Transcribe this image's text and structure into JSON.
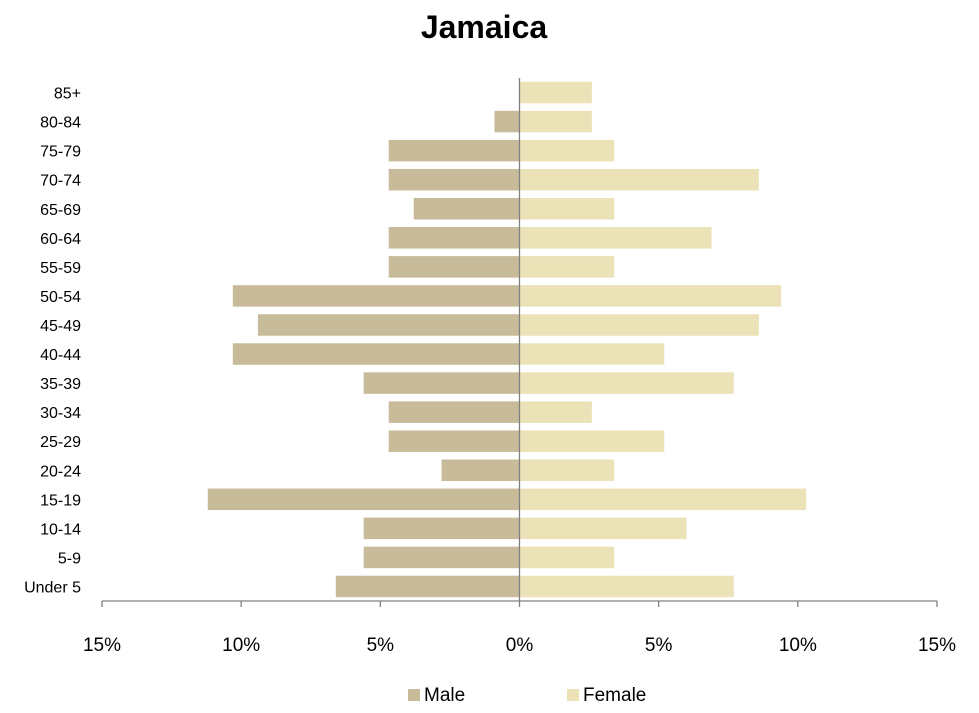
{
  "chart_data": {
    "type": "bar",
    "orientation": "horizontal",
    "title": "Jamaica",
    "xlabel": "",
    "ylabel": "",
    "categories": [
      "85+",
      "80-84",
      "75-79",
      "70-74",
      "65-69",
      "60-64",
      "55-59",
      "50-54",
      "45-49",
      "40-44",
      "35-39",
      "30-34",
      "25-29",
      "20-24",
      "15-19",
      "10-14",
      "5-9",
      "Under 5"
    ],
    "series": [
      {
        "name": "Male",
        "color": "#c8bb9a",
        "values": [
          0,
          -0.9,
          -4.7,
          -4.7,
          -3.8,
          -4.7,
          -4.7,
          -10.3,
          -9.4,
          -10.3,
          -5.6,
          -4.7,
          -4.7,
          -2.8,
          -11.2,
          -5.6,
          -5.6,
          -6.6
        ]
      },
      {
        "name": "Female",
        "color": "#ebe2b8",
        "values": [
          2.6,
          2.6,
          3.4,
          8.6,
          3.4,
          6.9,
          3.4,
          9.4,
          8.6,
          5.2,
          7.7,
          2.6,
          5.2,
          3.4,
          10.3,
          6.0,
          3.4,
          7.7
        ]
      }
    ],
    "xlim": [
      -15,
      15
    ],
    "xticks": [
      -15,
      -10,
      -5,
      0,
      5,
      10,
      15
    ],
    "xtick_labels": [
      "15%",
      "10%",
      "5%",
      "0%",
      "5%",
      "10%",
      "15%"
    ],
    "grid": false,
    "legend_position": "bottom",
    "axis_color": "#808080"
  }
}
